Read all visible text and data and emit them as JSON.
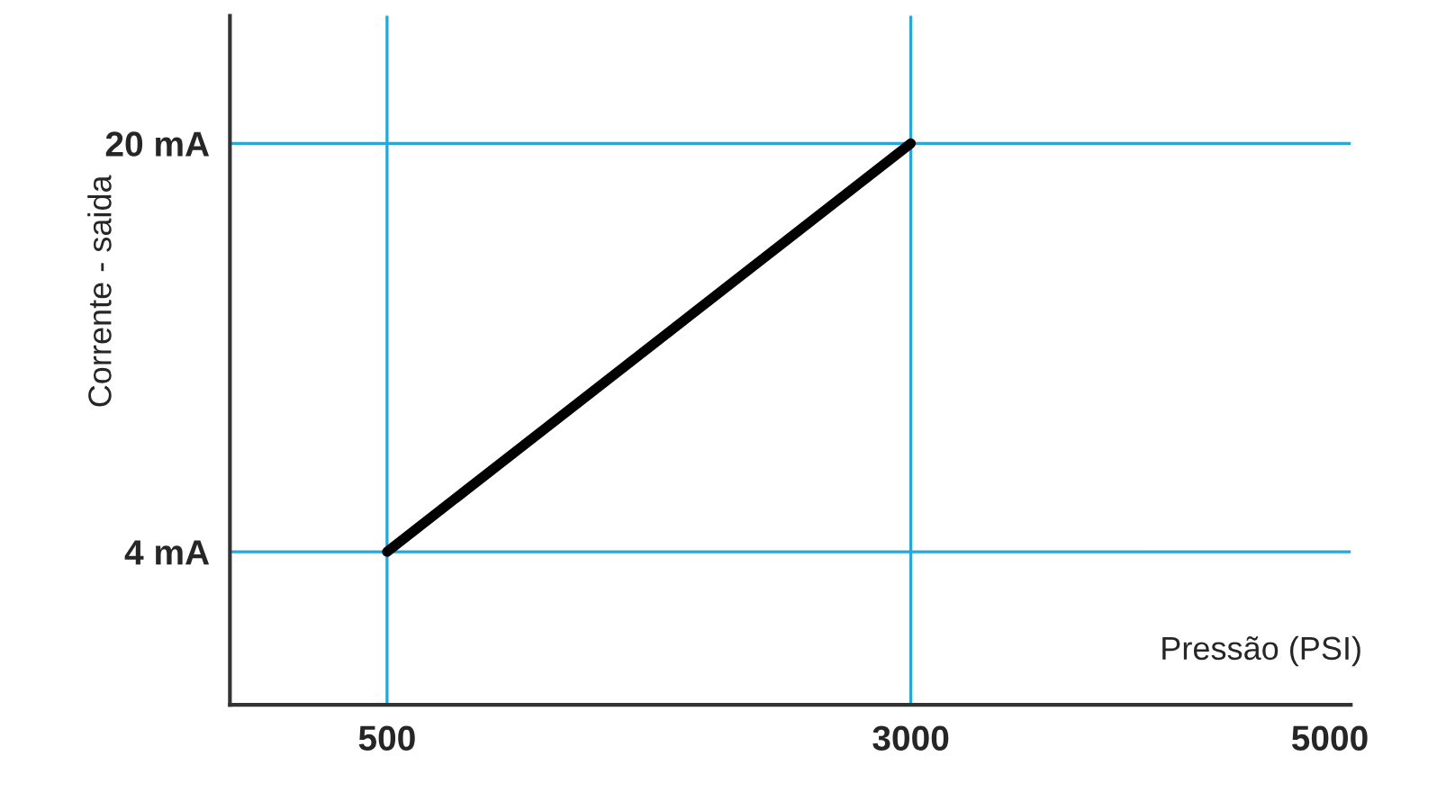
{
  "chart_data": {
    "type": "line",
    "xlabel": "Pressão (PSI)",
    "ylabel": "Corrente - saida",
    "series": [
      {
        "color": "#000000",
        "x": [
          500,
          3000
        ],
        "values": [
          4,
          20
        ]
      }
    ],
    "xlim": [
      -250,
      5100
    ],
    "xticks": [
      500,
      3000,
      5000
    ],
    "ylim": [
      -2,
      25
    ],
    "yticks": [
      {
        "value": 4,
        "label": "4 mA"
      },
      {
        "value": 20,
        "label": "20 mA"
      }
    ],
    "ref_lines": [
      {
        "axis": "x",
        "value": 500,
        "color": "#29a8d8"
      },
      {
        "axis": "x",
        "value": 3000,
        "color": "#29a8d8"
      },
      {
        "axis": "y",
        "value": 4,
        "color": "#29a8d8"
      },
      {
        "axis": "y",
        "value": 20,
        "color": "#29a8d8"
      }
    ],
    "grid": false,
    "legend": false
  }
}
